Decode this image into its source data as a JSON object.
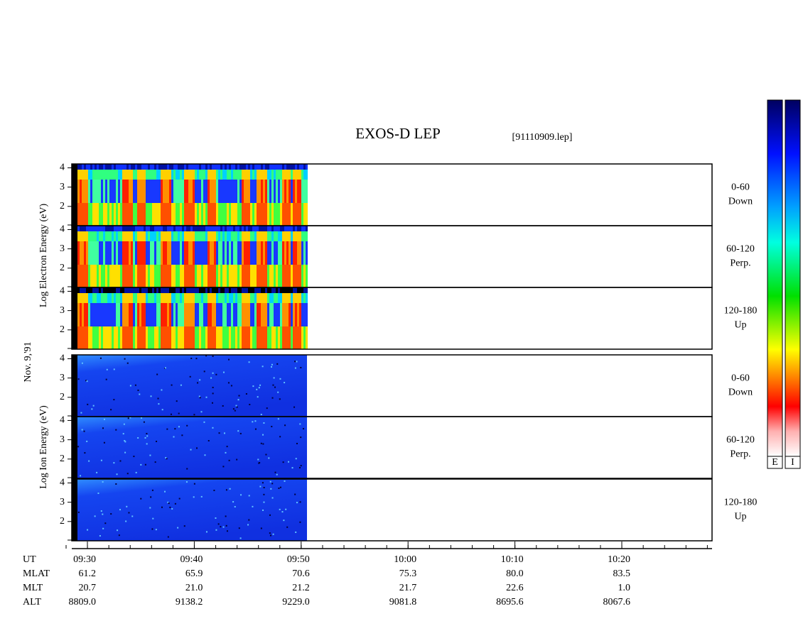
{
  "header": {
    "title": "EXOS-D LEP",
    "file": "[91110909.lep]"
  },
  "left_labels": {
    "electron": "Log Electron Energy (eV)",
    "date": "Nov. 9,'91",
    "ion": "Log Ion Energy (eV)"
  },
  "energy_axis": {
    "ylim": [
      1,
      4.2
    ],
    "yticks": [
      2,
      3,
      4
    ]
  },
  "panels": [
    {
      "angle": "0-60",
      "direction": "Down"
    },
    {
      "angle": "60-120",
      "direction": "Perp."
    },
    {
      "angle": "120-180",
      "direction": "Up"
    },
    {
      "angle": "0-60",
      "direction": "Down"
    },
    {
      "angle": "60-120",
      "direction": "Perp."
    },
    {
      "angle": "120-180",
      "direction": "Up"
    }
  ],
  "orbit": {
    "row_labels": [
      "UT",
      "MLAT",
      "MLT",
      "ALT"
    ],
    "columns": [
      [
        "09:30",
        "61.2",
        "20.7",
        "8809.0"
      ],
      [
        "09:40",
        "65.9",
        "21.0",
        "9138.2"
      ],
      [
        "09:50",
        "70.6",
        "21.2",
        "9229.0"
      ],
      [
        "10:00",
        "75.3",
        "21.7",
        "9081.8"
      ],
      [
        "10:10",
        "80.0",
        "22.6",
        "8695.6"
      ],
      [
        "10:20",
        "83.5",
        "1.0",
        "8067.6"
      ]
    ]
  },
  "colorbars": [
    "E",
    "I"
  ]
}
